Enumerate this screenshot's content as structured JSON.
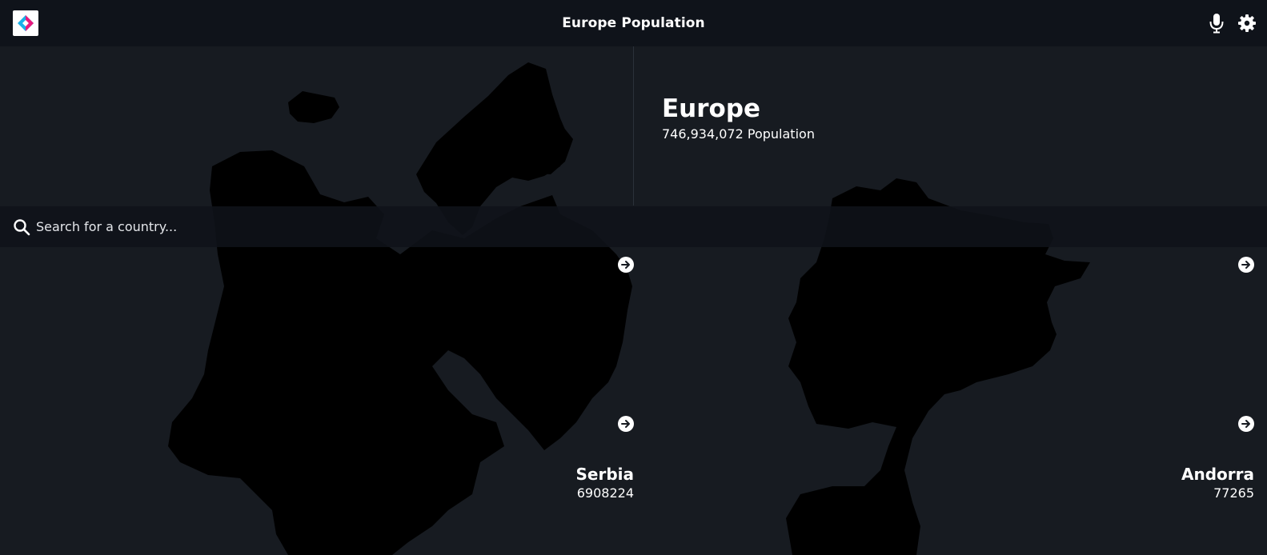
{
  "header": {
    "title": "Europe Population",
    "logo_icon": "diamond-logo-icon",
    "mic_icon": "microphone-icon",
    "settings_icon": "gear-icon"
  },
  "region": {
    "name": "Europe",
    "population": "746,934,072",
    "population_label": "Population"
  },
  "search": {
    "placeholder": "Search for a country...",
    "value": ""
  },
  "countries": [
    {
      "name": "Serbia",
      "population": "6908224"
    },
    {
      "name": "Andorra",
      "population": "77265"
    }
  ],
  "colors": {
    "background": "#171b21",
    "header": "#0f131a",
    "map_fill": "#000000",
    "text": "#ffffff",
    "logo_cyan": "#1ab0e8",
    "logo_pink": "#e8197d"
  }
}
